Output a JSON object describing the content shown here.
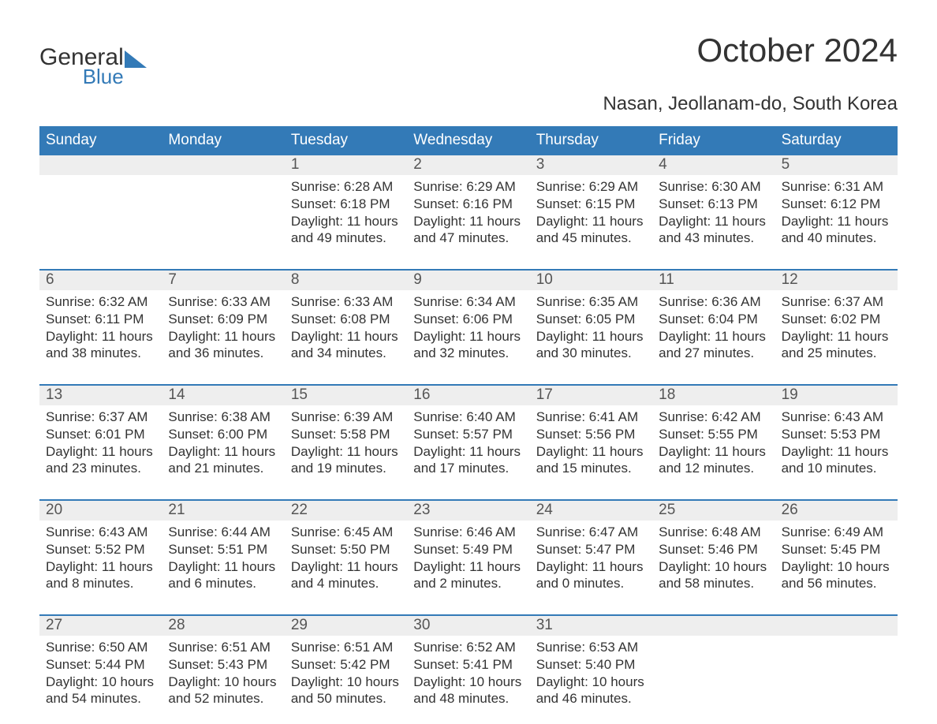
{
  "brand": {
    "line1": "General",
    "line2": "Blue",
    "accent_color": "#337ab7"
  },
  "header": {
    "title": "October 2024",
    "location": "Nasan, Jeollanam-do, South Korea"
  },
  "calendar": {
    "type": "table",
    "header_bg": "#337ab7",
    "header_fg": "#ffffff",
    "divider_color": "#337ab7",
    "daynum_bg": "#eeeeee",
    "background_color": "#ffffff",
    "text_color": "#333333",
    "font_family": "Arial",
    "header_fontsize": 19,
    "daynum_fontsize": 19,
    "body_fontsize": 17,
    "weekdays": [
      "Sunday",
      "Monday",
      "Tuesday",
      "Wednesday",
      "Thursday",
      "Friday",
      "Saturday"
    ],
    "weeks": [
      [
        null,
        null,
        {
          "n": "1",
          "sr": "Sunrise: 6:28 AM",
          "ss": "Sunset: 6:18 PM",
          "d1": "Daylight: 11 hours",
          "d2": "and 49 minutes."
        },
        {
          "n": "2",
          "sr": "Sunrise: 6:29 AM",
          "ss": "Sunset: 6:16 PM",
          "d1": "Daylight: 11 hours",
          "d2": "and 47 minutes."
        },
        {
          "n": "3",
          "sr": "Sunrise: 6:29 AM",
          "ss": "Sunset: 6:15 PM",
          "d1": "Daylight: 11 hours",
          "d2": "and 45 minutes."
        },
        {
          "n": "4",
          "sr": "Sunrise: 6:30 AM",
          "ss": "Sunset: 6:13 PM",
          "d1": "Daylight: 11 hours",
          "d2": "and 43 minutes."
        },
        {
          "n": "5",
          "sr": "Sunrise: 6:31 AM",
          "ss": "Sunset: 6:12 PM",
          "d1": "Daylight: 11 hours",
          "d2": "and 40 minutes."
        }
      ],
      [
        {
          "n": "6",
          "sr": "Sunrise: 6:32 AM",
          "ss": "Sunset: 6:11 PM",
          "d1": "Daylight: 11 hours",
          "d2": "and 38 minutes."
        },
        {
          "n": "7",
          "sr": "Sunrise: 6:33 AM",
          "ss": "Sunset: 6:09 PM",
          "d1": "Daylight: 11 hours",
          "d2": "and 36 minutes."
        },
        {
          "n": "8",
          "sr": "Sunrise: 6:33 AM",
          "ss": "Sunset: 6:08 PM",
          "d1": "Daylight: 11 hours",
          "d2": "and 34 minutes."
        },
        {
          "n": "9",
          "sr": "Sunrise: 6:34 AM",
          "ss": "Sunset: 6:06 PM",
          "d1": "Daylight: 11 hours",
          "d2": "and 32 minutes."
        },
        {
          "n": "10",
          "sr": "Sunrise: 6:35 AM",
          "ss": "Sunset: 6:05 PM",
          "d1": "Daylight: 11 hours",
          "d2": "and 30 minutes."
        },
        {
          "n": "11",
          "sr": "Sunrise: 6:36 AM",
          "ss": "Sunset: 6:04 PM",
          "d1": "Daylight: 11 hours",
          "d2": "and 27 minutes."
        },
        {
          "n": "12",
          "sr": "Sunrise: 6:37 AM",
          "ss": "Sunset: 6:02 PM",
          "d1": "Daylight: 11 hours",
          "d2": "and 25 minutes."
        }
      ],
      [
        {
          "n": "13",
          "sr": "Sunrise: 6:37 AM",
          "ss": "Sunset: 6:01 PM",
          "d1": "Daylight: 11 hours",
          "d2": "and 23 minutes."
        },
        {
          "n": "14",
          "sr": "Sunrise: 6:38 AM",
          "ss": "Sunset: 6:00 PM",
          "d1": "Daylight: 11 hours",
          "d2": "and 21 minutes."
        },
        {
          "n": "15",
          "sr": "Sunrise: 6:39 AM",
          "ss": "Sunset: 5:58 PM",
          "d1": "Daylight: 11 hours",
          "d2": "and 19 minutes."
        },
        {
          "n": "16",
          "sr": "Sunrise: 6:40 AM",
          "ss": "Sunset: 5:57 PM",
          "d1": "Daylight: 11 hours",
          "d2": "and 17 minutes."
        },
        {
          "n": "17",
          "sr": "Sunrise: 6:41 AM",
          "ss": "Sunset: 5:56 PM",
          "d1": "Daylight: 11 hours",
          "d2": "and 15 minutes."
        },
        {
          "n": "18",
          "sr": "Sunrise: 6:42 AM",
          "ss": "Sunset: 5:55 PM",
          "d1": "Daylight: 11 hours",
          "d2": "and 12 minutes."
        },
        {
          "n": "19",
          "sr": "Sunrise: 6:43 AM",
          "ss": "Sunset: 5:53 PM",
          "d1": "Daylight: 11 hours",
          "d2": "and 10 minutes."
        }
      ],
      [
        {
          "n": "20",
          "sr": "Sunrise: 6:43 AM",
          "ss": "Sunset: 5:52 PM",
          "d1": "Daylight: 11 hours",
          "d2": "and 8 minutes."
        },
        {
          "n": "21",
          "sr": "Sunrise: 6:44 AM",
          "ss": "Sunset: 5:51 PM",
          "d1": "Daylight: 11 hours",
          "d2": "and 6 minutes."
        },
        {
          "n": "22",
          "sr": "Sunrise: 6:45 AM",
          "ss": "Sunset: 5:50 PM",
          "d1": "Daylight: 11 hours",
          "d2": "and 4 minutes."
        },
        {
          "n": "23",
          "sr": "Sunrise: 6:46 AM",
          "ss": "Sunset: 5:49 PM",
          "d1": "Daylight: 11 hours",
          "d2": "and 2 minutes."
        },
        {
          "n": "24",
          "sr": "Sunrise: 6:47 AM",
          "ss": "Sunset: 5:47 PM",
          "d1": "Daylight: 11 hours",
          "d2": "and 0 minutes."
        },
        {
          "n": "25",
          "sr": "Sunrise: 6:48 AM",
          "ss": "Sunset: 5:46 PM",
          "d1": "Daylight: 10 hours",
          "d2": "and 58 minutes."
        },
        {
          "n": "26",
          "sr": "Sunrise: 6:49 AM",
          "ss": "Sunset: 5:45 PM",
          "d1": "Daylight: 10 hours",
          "d2": "and 56 minutes."
        }
      ],
      [
        {
          "n": "27",
          "sr": "Sunrise: 6:50 AM",
          "ss": "Sunset: 5:44 PM",
          "d1": "Daylight: 10 hours",
          "d2": "and 54 minutes."
        },
        {
          "n": "28",
          "sr": "Sunrise: 6:51 AM",
          "ss": "Sunset: 5:43 PM",
          "d1": "Daylight: 10 hours",
          "d2": "and 52 minutes."
        },
        {
          "n": "29",
          "sr": "Sunrise: 6:51 AM",
          "ss": "Sunset: 5:42 PM",
          "d1": "Daylight: 10 hours",
          "d2": "and 50 minutes."
        },
        {
          "n": "30",
          "sr": "Sunrise: 6:52 AM",
          "ss": "Sunset: 5:41 PM",
          "d1": "Daylight: 10 hours",
          "d2": "and 48 minutes."
        },
        {
          "n": "31",
          "sr": "Sunrise: 6:53 AM",
          "ss": "Sunset: 5:40 PM",
          "d1": "Daylight: 10 hours",
          "d2": "and 46 minutes."
        },
        null,
        null
      ]
    ]
  }
}
